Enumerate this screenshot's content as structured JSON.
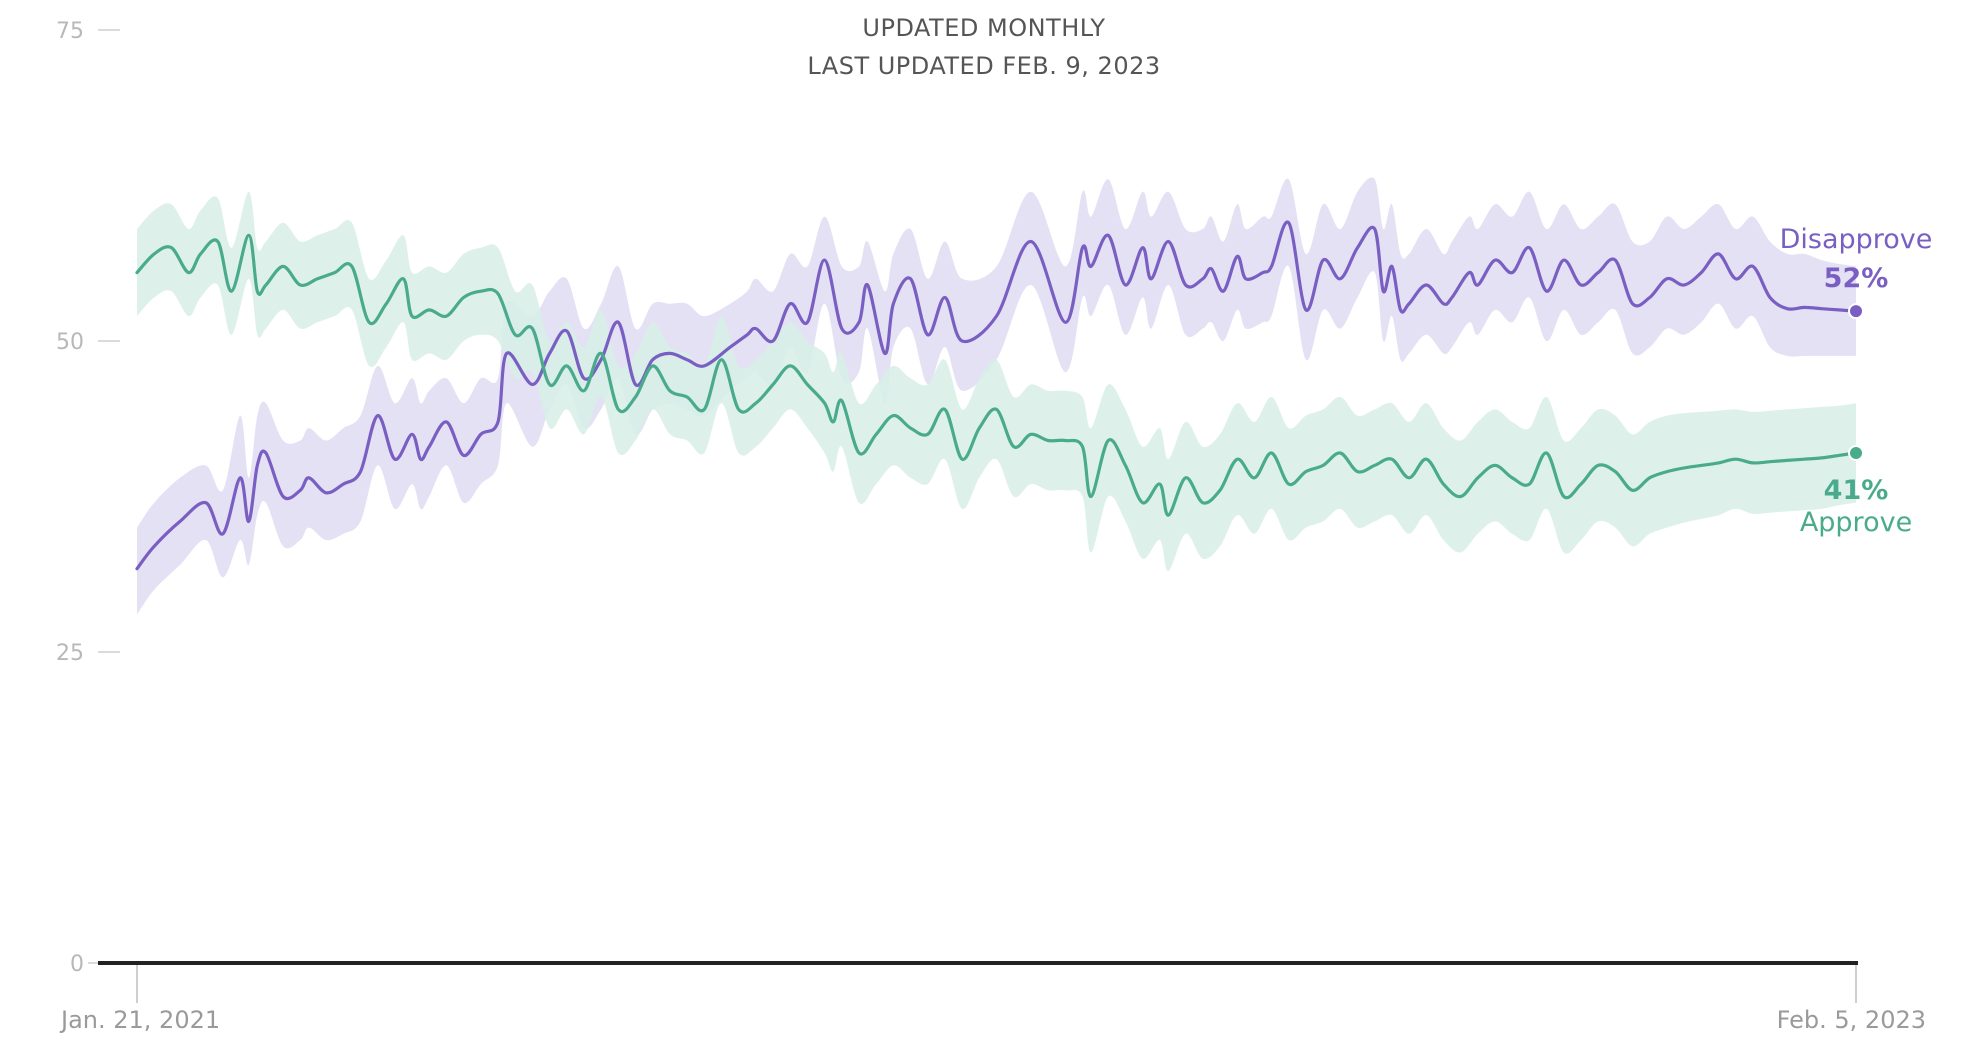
{
  "header": {
    "line1": "UPDATED MONTHLY",
    "line2": "LAST UPDATED FEB. 9, 2023"
  },
  "chart_data": {
    "type": "line",
    "x_start": "Jan. 21, 2021",
    "x_end": "Feb. 5, 2023",
    "x_ticks": [
      "Jan. 21, 2021",
      "Feb. 5, 2023"
    ],
    "ylim": [
      0,
      75
    ],
    "y_ticks": [
      0,
      25,
      50,
      75
    ],
    "grid": false,
    "legend": "labels at line ends (right)",
    "colors": {
      "disapprove": "#7a5fc2",
      "disapprove_band": "#e1dcf2",
      "approve": "#4aab8c",
      "approve_band": "#d7efe6"
    },
    "series": [
      {
        "name": "Disapprove",
        "color": "#7a5fc2",
        "end_label": "52%",
        "x": [
          0,
          0.01,
          0.025,
          0.04,
          0.05,
          0.06,
          0.065,
          0.07,
          0.075,
          0.085,
          0.095,
          0.1,
          0.11,
          0.12,
          0.13,
          0.14,
          0.15,
          0.16,
          0.165,
          0.17,
          0.18,
          0.19,
          0.2,
          0.21,
          0.215,
          0.23,
          0.24,
          0.25,
          0.26,
          0.27,
          0.28,
          0.29,
          0.3,
          0.31,
          0.32,
          0.33,
          0.345,
          0.355,
          0.36,
          0.37,
          0.38,
          0.39,
          0.4,
          0.41,
          0.42,
          0.425,
          0.435,
          0.44,
          0.45,
          0.46,
          0.47,
          0.48,
          0.5,
          0.52,
          0.54,
          0.55,
          0.555,
          0.565,
          0.575,
          0.585,
          0.59,
          0.6,
          0.61,
          0.62,
          0.625,
          0.632,
          0.64,
          0.645,
          0.655,
          0.66,
          0.67,
          0.68,
          0.69,
          0.7,
          0.71,
          0.72,
          0.725,
          0.73,
          0.735,
          0.74,
          0.75,
          0.76,
          0.765,
          0.775,
          0.78,
          0.79,
          0.8,
          0.81,
          0.82,
          0.83,
          0.84,
          0.85,
          0.86,
          0.87,
          0.88,
          0.89,
          0.9,
          0.91,
          0.92,
          0.93,
          0.94,
          0.95,
          0.96,
          0.97,
          0.98,
          0.99,
          1
        ],
        "values": [
          31.7,
          33.5,
          35.5,
          37,
          34.5,
          39,
          35.5,
          40,
          41,
          37.5,
          38,
          39,
          37.8,
          38.5,
          39.5,
          44,
          40.5,
          42.5,
          40.5,
          41.5,
          43.5,
          40.8,
          42.5,
          43.5,
          49,
          46.5,
          49,
          50.8,
          47,
          48.5,
          51.5,
          46.5,
          48.5,
          49,
          48.5,
          48,
          49.5,
          50.5,
          51,
          50,
          53,
          51.5,
          56.5,
          51,
          51.5,
          54.5,
          49,
          53,
          55,
          50.5,
          53.5,
          50,
          52,
          58,
          51.5,
          57.5,
          56,
          58.5,
          54.5,
          57.5,
          55,
          58,
          54.5,
          55,
          55.8,
          54,
          56.8,
          55,
          55.5,
          56,
          59.5,
          52.5,
          56.5,
          55,
          57.5,
          59,
          54,
          56,
          52.5,
          53,
          54.5,
          53,
          53.5,
          55.5,
          54.5,
          56.5,
          55.5,
          57.5,
          54,
          56.5,
          54.5,
          55.5,
          56.5,
          53,
          53.5,
          55,
          54.5,
          55.5,
          57,
          55,
          56,
          53.5,
          52.6,
          52.7,
          52.6,
          52.5,
          52.4
        ],
        "band_upper": [
          35,
          37,
          39,
          40,
          38,
          44,
          39,
          44,
          45,
          42,
          42,
          43,
          42,
          43,
          44,
          48,
          45,
          47,
          45,
          46,
          47,
          45,
          47,
          47,
          53,
          52,
          54,
          55,
          51,
          53,
          56,
          51,
          53,
          53,
          53,
          52,
          53,
          54,
          55,
          54,
          57,
          56,
          60,
          56,
          56,
          58,
          54,
          57,
          59,
          55,
          58,
          55,
          56,
          62,
          56,
          62,
          60,
          63,
          59,
          62,
          60,
          62,
          59,
          59,
          60,
          58,
          61,
          59,
          60,
          60,
          63,
          57,
          61,
          59,
          62,
          63,
          59,
          61,
          57,
          57,
          59,
          57,
          58,
          60,
          59,
          61,
          60,
          62,
          59,
          61,
          59,
          60,
          61,
          58,
          58,
          60,
          59,
          60,
          61,
          59,
          60,
          58,
          57,
          57,
          56.5,
          56.2,
          56
        ],
        "band_lower": [
          28,
          30,
          32,
          34,
          31,
          34,
          32,
          36,
          37,
          33.5,
          34,
          35,
          34,
          34.5,
          35.5,
          40,
          36.5,
          38.5,
          36.5,
          37.5,
          40,
          37,
          38.5,
          40,
          45,
          41.5,
          44.5,
          46.5,
          43,
          44.5,
          47,
          42.5,
          44.5,
          45,
          44.5,
          44,
          46,
          47,
          47.5,
          46.5,
          49.5,
          47.5,
          53,
          47,
          47.5,
          51,
          45,
          49.5,
          51,
          46.5,
          49.5,
          46,
          48.5,
          54.5,
          47.5,
          53.5,
          52,
          54.5,
          50.5,
          53.5,
          51,
          54.5,
          50.5,
          51,
          51.5,
          50,
          52.5,
          51,
          51.5,
          52,
          56,
          48.5,
          52.5,
          51,
          53.5,
          55.5,
          50,
          52,
          48.5,
          49,
          50.5,
          49,
          49.5,
          51.5,
          50.5,
          52.5,
          51.5,
          53.5,
          50,
          52.5,
          50.5,
          51.5,
          52.5,
          49,
          49.5,
          51,
          50.5,
          51.5,
          53,
          51,
          52,
          49.5,
          48.8,
          48.8,
          48.8,
          48.8,
          48.8
        ]
      },
      {
        "name": "Approve",
        "color": "#4aab8c",
        "end_label": "41%",
        "x": [
          0,
          0.01,
          0.02,
          0.03,
          0.037,
          0.047,
          0.055,
          0.065,
          0.07,
          0.075,
          0.085,
          0.095,
          0.105,
          0.115,
          0.125,
          0.135,
          0.145,
          0.155,
          0.16,
          0.17,
          0.18,
          0.19,
          0.2,
          0.21,
          0.22,
          0.23,
          0.24,
          0.25,
          0.26,
          0.27,
          0.28,
          0.29,
          0.3,
          0.31,
          0.32,
          0.33,
          0.34,
          0.35,
          0.36,
          0.37,
          0.38,
          0.39,
          0.4,
          0.405,
          0.41,
          0.42,
          0.43,
          0.44,
          0.45,
          0.46,
          0.47,
          0.48,
          0.49,
          0.5,
          0.51,
          0.52,
          0.53,
          0.54,
          0.55,
          0.555,
          0.565,
          0.575,
          0.585,
          0.595,
          0.6,
          0.61,
          0.62,
          0.63,
          0.64,
          0.65,
          0.66,
          0.67,
          0.68,
          0.69,
          0.7,
          0.71,
          0.72,
          0.73,
          0.74,
          0.75,
          0.76,
          0.77,
          0.78,
          0.79,
          0.8,
          0.81,
          0.82,
          0.83,
          0.84,
          0.85,
          0.86,
          0.87,
          0.88,
          0.89,
          0.9,
          0.91,
          0.92,
          0.93,
          0.94,
          0.95,
          0.96,
          0.97,
          0.98,
          0.99,
          1
        ],
        "values": [
          55.5,
          57,
          57.5,
          55.5,
          57,
          58,
          54,
          58.5,
          54,
          54.5,
          56,
          54.5,
          55,
          55.5,
          56,
          51.5,
          53,
          55,
          52,
          52.5,
          52,
          53.5,
          54,
          53.8,
          50.5,
          51,
          46.5,
          48,
          46,
          49,
          44.5,
          45.5,
          48,
          46,
          45.5,
          44.5,
          48.5,
          44.5,
          45,
          46.5,
          48,
          46.5,
          45,
          43.5,
          45.2,
          41,
          42.5,
          44,
          43,
          42.5,
          44.5,
          40.5,
          43,
          44.5,
          41.5,
          42.5,
          42,
          42,
          41.5,
          37.5,
          42,
          40,
          37,
          38.5,
          36,
          39,
          37,
          38,
          40.5,
          39,
          41,
          38.5,
          39.5,
          40,
          41,
          39.5,
          40,
          40.5,
          39,
          40.5,
          38.5,
          37.5,
          39,
          40,
          39,
          38.5,
          41,
          37.5,
          38.5,
          40,
          39.5,
          38,
          39,
          39.5,
          39.8,
          40,
          40.2,
          40.5,
          40.2,
          40.3,
          40.4,
          40.5,
          40.6,
          40.8,
          41
        ],
        "band_upper": [
          59,
          60.5,
          61,
          59,
          60.5,
          61.5,
          57.5,
          62,
          57.5,
          58,
          59.5,
          58,
          58.5,
          59,
          59.5,
          55,
          56.5,
          58.5,
          55.5,
          56,
          55.5,
          57,
          57.5,
          57.5,
          54,
          54.5,
          50,
          51.5,
          49.5,
          52.5,
          48,
          49,
          51.5,
          49.5,
          49,
          48,
          52,
          48,
          48.5,
          50,
          51.5,
          50,
          49,
          47.5,
          49,
          45,
          46.5,
          48,
          47,
          46.5,
          48.5,
          44.5,
          47,
          48.5,
          45.5,
          46.5,
          46,
          46,
          45.5,
          43,
          46.5,
          44.5,
          41.5,
          43,
          40.5,
          43.5,
          41.5,
          42.5,
          45,
          43.5,
          45.5,
          43,
          44,
          44.5,
          45.5,
          44,
          44.5,
          45,
          43.5,
          45,
          43,
          42,
          43.5,
          44.5,
          43.5,
          43,
          45.5,
          42,
          43,
          44.5,
          44,
          42.5,
          43.5,
          44,
          44.2,
          44.3,
          44.4,
          44.5,
          44.3,
          44.4,
          44.5,
          44.6,
          44.7,
          44.8,
          45
        ],
        "band_lower": [
          52,
          53.5,
          54,
          52,
          53.5,
          54.5,
          50.5,
          55,
          50.5,
          51,
          52.5,
          51,
          51.5,
          52,
          52.5,
          48,
          49.5,
          51.5,
          48.5,
          49,
          48.5,
          50,
          50.5,
          50,
          47,
          47.5,
          43,
          44.5,
          42.5,
          45.5,
          41,
          42,
          44.5,
          42.5,
          42,
          41,
          45,
          41,
          41.5,
          43,
          44.5,
          43,
          41,
          39.5,
          41.5,
          37,
          38.5,
          40,
          39,
          38.5,
          40.5,
          36.5,
          39,
          40.5,
          37.5,
          38.5,
          38,
          38,
          37.5,
          33,
          37.5,
          35.5,
          32.5,
          34,
          31.5,
          34.5,
          32.5,
          33.5,
          36,
          34.5,
          36.5,
          34,
          35,
          35.5,
          36.5,
          35,
          35.5,
          36,
          34.5,
          36,
          34,
          33,
          34.5,
          35.5,
          34.5,
          34,
          36.5,
          33,
          34,
          35.5,
          35,
          33.5,
          34.5,
          35,
          35.4,
          35.7,
          36,
          36.5,
          36.1,
          36.2,
          36.3,
          36.4,
          36.5,
          36.8,
          37
        ]
      }
    ]
  }
}
